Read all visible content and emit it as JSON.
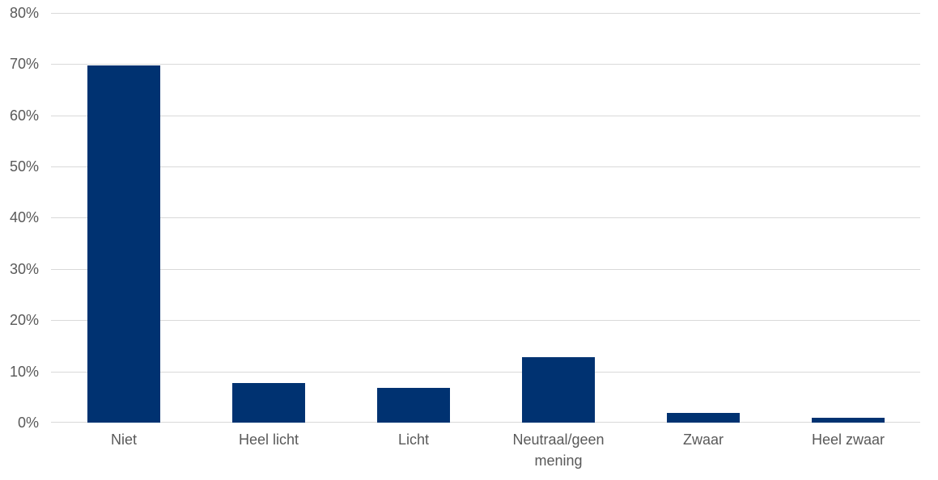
{
  "chart_data": {
    "type": "bar",
    "categories": [
      "Niet",
      "Heel licht",
      "Licht",
      "Neutraal/geen mening",
      "Zwaar",
      "Heel zwaar"
    ],
    "values": [
      69.7,
      7.7,
      6.8,
      12.8,
      1.9,
      1.0
    ],
    "title": "",
    "xlabel": "",
    "ylabel": "",
    "ylim": [
      0,
      80
    ],
    "y_tick_step": 10,
    "y_tick_labels": [
      "0%",
      "10%",
      "20%",
      "30%",
      "40%",
      "50%",
      "60%",
      "70%",
      "80%"
    ],
    "grid": true,
    "legend": false,
    "colors": {
      "bar": "#003271",
      "gridline": "#d9d9d9",
      "tick_label": "#595959",
      "background": "#ffffff"
    }
  }
}
